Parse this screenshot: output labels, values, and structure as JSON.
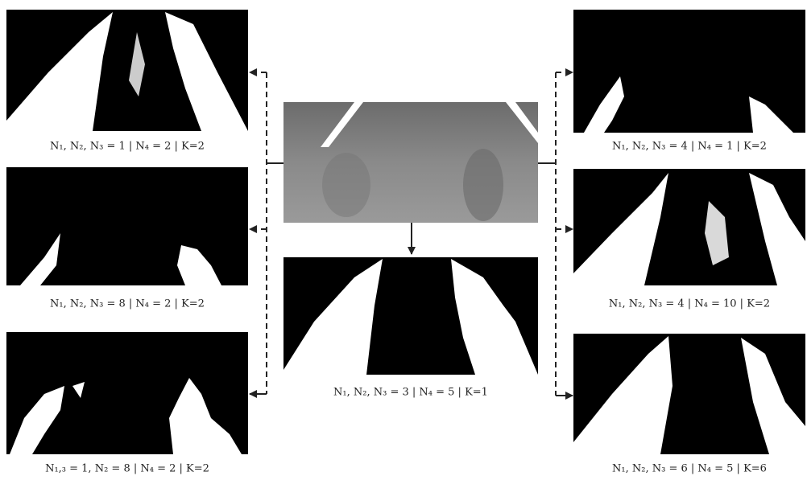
{
  "panels": {
    "left_top": {
      "caption": "N₁, N₂, N₃ = 1  | N₄ = 2 | K=2"
    },
    "left_middle": {
      "caption": "N₁, N₂, N₃ = 8  | N₄ = 2 | K=2"
    },
    "left_bottom": {
      "caption": "N₁,₃ = 1, N₂ = 8  | N₄ = 2 | K=2"
    },
    "center": {
      "caption": "N₁, N₂, N₃ = 3  | N₄ = 5 | K=1"
    },
    "right_top": {
      "caption": "N₁, N₂, N₃ = 4  | N₄ = 1 | K=2"
    },
    "right_middle": {
      "caption": "N₁, N₂, N₃ = 4  | N₄ = 10 | K=2"
    },
    "right_bottom": {
      "caption": "N₁, N₂, N₃ = 6  | N₄ = 5 | K=6"
    }
  }
}
